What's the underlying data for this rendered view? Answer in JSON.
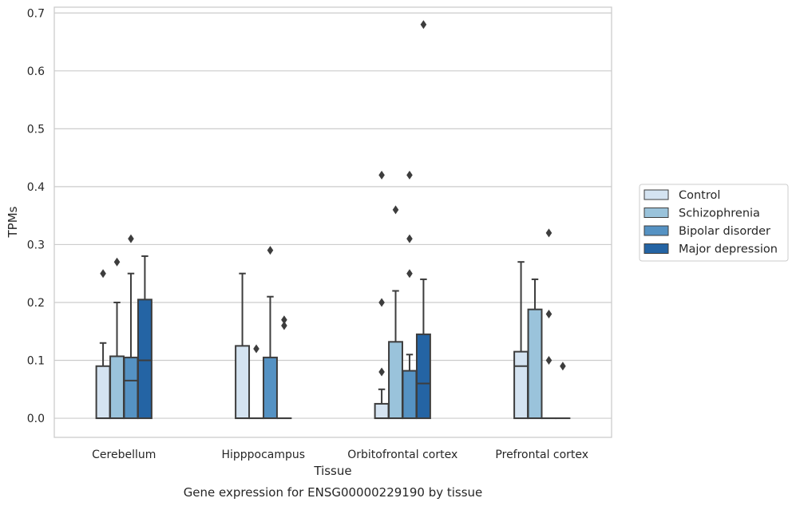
{
  "chart_data": {
    "type": "box",
    "caption": "Gene expression for ENSG00000229190 by tissue",
    "xlabel": "Tissue",
    "ylabel": "TPMs",
    "ylim": [
      -0.033,
      0.71
    ],
    "yticks": [
      0.0,
      0.1,
      0.2,
      0.3,
      0.4,
      0.5,
      0.6,
      0.7
    ],
    "ytick_labels": [
      "0.0",
      "0.1",
      "0.2",
      "0.3",
      "0.4",
      "0.5",
      "0.6",
      "0.7"
    ],
    "categories": [
      "Cerebellum",
      "Hipppocampus",
      "Orbitofrontal cortex",
      "Prefrontal cortex"
    ],
    "grid": "horizontal",
    "legend_position": "right",
    "series": [
      {
        "name": "Control",
        "color": "#d4e3f1",
        "boxes": [
          {
            "q1": 0.0,
            "median": 0.0,
            "q3": 0.09,
            "whisker_low": 0.0,
            "whisker_high": 0.13,
            "outliers": [
              0.25
            ]
          },
          {
            "q1": 0.0,
            "median": 0.0,
            "q3": 0.125,
            "whisker_low": 0.0,
            "whisker_high": 0.25,
            "outliers": []
          },
          {
            "q1": 0.0,
            "median": 0.0,
            "q3": 0.025,
            "whisker_low": 0.0,
            "whisker_high": 0.05,
            "outliers": [
              0.08,
              0.2,
              0.42
            ]
          },
          {
            "q1": 0.0,
            "median": 0.09,
            "q3": 0.115,
            "whisker_low": 0.0,
            "whisker_high": 0.27,
            "outliers": []
          }
        ]
      },
      {
        "name": "Schizophrenia",
        "color": "#9ac3db",
        "boxes": [
          {
            "q1": 0.0,
            "median": 0.0,
            "q3": 0.107,
            "whisker_low": 0.0,
            "whisker_high": 0.2,
            "outliers": [
              0.27
            ]
          },
          {
            "q1": 0.0,
            "median": 0.0,
            "q3": 0.0,
            "whisker_low": 0.0,
            "whisker_high": 0.0,
            "outliers": [
              0.12
            ]
          },
          {
            "q1": 0.0,
            "median": 0.0,
            "q3": 0.132,
            "whisker_low": 0.0,
            "whisker_high": 0.22,
            "outliers": [
              0.36
            ]
          },
          {
            "q1": 0.0,
            "median": 0.0,
            "q3": 0.188,
            "whisker_low": 0.0,
            "whisker_high": 0.24,
            "outliers": []
          }
        ]
      },
      {
        "name": "Bipolar disorder",
        "color": "#5592c3",
        "boxes": [
          {
            "q1": 0.0,
            "median": 0.065,
            "q3": 0.105,
            "whisker_low": 0.0,
            "whisker_high": 0.25,
            "outliers": [
              0.31
            ]
          },
          {
            "q1": 0.0,
            "median": 0.0,
            "q3": 0.105,
            "whisker_low": 0.0,
            "whisker_high": 0.21,
            "outliers": [
              0.29
            ]
          },
          {
            "q1": 0.0,
            "median": 0.0,
            "q3": 0.082,
            "whisker_low": 0.0,
            "whisker_high": 0.11,
            "outliers": [
              0.25,
              0.31,
              0.42
            ]
          },
          {
            "q1": 0.0,
            "median": 0.0,
            "q3": 0.0,
            "whisker_low": 0.0,
            "whisker_high": 0.0,
            "outliers": [
              0.1,
              0.18,
              0.32
            ]
          }
        ]
      },
      {
        "name": "Major depression",
        "color": "#2464a4",
        "boxes": [
          {
            "q1": 0.0,
            "median": 0.1,
            "q3": 0.205,
            "whisker_low": 0.0,
            "whisker_high": 0.28,
            "outliers": []
          },
          {
            "q1": 0.0,
            "median": 0.0,
            "q3": 0.0,
            "whisker_low": 0.0,
            "whisker_high": 0.0,
            "outliers": [
              0.16,
              0.17
            ]
          },
          {
            "q1": 0.0,
            "median": 0.06,
            "q3": 0.145,
            "whisker_low": 0.0,
            "whisker_high": 0.24,
            "outliers": [
              0.68
            ]
          },
          {
            "q1": 0.0,
            "median": 0.0,
            "q3": 0.0,
            "whisker_low": 0.0,
            "whisker_high": 0.0,
            "outliers": [
              0.09
            ]
          }
        ]
      }
    ]
  }
}
